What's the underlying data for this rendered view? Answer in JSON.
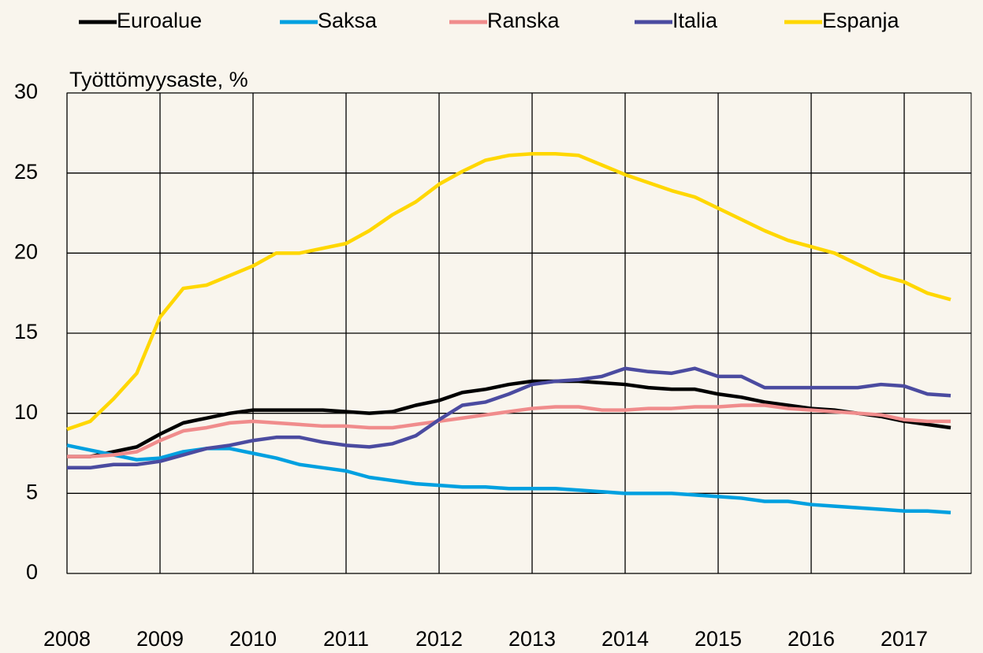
{
  "chart_data": {
    "type": "line",
    "y_label": "Työttömyysaste, %",
    "x": [
      2008,
      2008.25,
      2008.5,
      2008.75,
      2009,
      2009.25,
      2009.5,
      2009.75,
      2010,
      2010.25,
      2010.5,
      2010.75,
      2011,
      2011.25,
      2011.5,
      2011.75,
      2012,
      2012.25,
      2012.5,
      2012.75,
      2013,
      2013.25,
      2013.5,
      2013.75,
      2014,
      2014.25,
      2014.5,
      2014.75,
      2015,
      2015.25,
      2015.5,
      2015.75,
      2016,
      2016.25,
      2016.5,
      2016.75,
      2017,
      2017.25,
      2017.5
    ],
    "series": [
      {
        "name": "Euroalue",
        "color": "#000000",
        "values": [
          7.3,
          7.3,
          7.6,
          7.9,
          8.7,
          9.4,
          9.7,
          10.0,
          10.2,
          10.2,
          10.2,
          10.2,
          10.1,
          10.0,
          10.1,
          10.5,
          10.8,
          11.3,
          11.5,
          11.8,
          12.0,
          12.0,
          12.0,
          11.9,
          11.8,
          11.6,
          11.5,
          11.5,
          11.2,
          11.0,
          10.7,
          10.5,
          10.3,
          10.2,
          10.0,
          9.8,
          9.5,
          9.3,
          9.1
        ]
      },
      {
        "name": "Saksa",
        "color": "#00a0e0",
        "values": [
          8.0,
          7.7,
          7.4,
          7.1,
          7.2,
          7.6,
          7.8,
          7.8,
          7.5,
          7.2,
          6.8,
          6.6,
          6.4,
          6.0,
          5.8,
          5.6,
          5.5,
          5.4,
          5.4,
          5.3,
          5.3,
          5.3,
          5.2,
          5.1,
          5.0,
          5.0,
          5.0,
          4.9,
          4.8,
          4.7,
          4.5,
          4.5,
          4.3,
          4.2,
          4.1,
          4.0,
          3.9,
          3.9,
          3.8
        ]
      },
      {
        "name": "Ranska",
        "color": "#f08c8c",
        "values": [
          7.3,
          7.3,
          7.4,
          7.6,
          8.3,
          8.9,
          9.1,
          9.4,
          9.5,
          9.4,
          9.3,
          9.2,
          9.2,
          9.1,
          9.1,
          9.3,
          9.5,
          9.7,
          9.9,
          10.1,
          10.3,
          10.4,
          10.4,
          10.2,
          10.2,
          10.3,
          10.3,
          10.4,
          10.4,
          10.5,
          10.5,
          10.3,
          10.2,
          10.1,
          10.0,
          9.9,
          9.6,
          9.5,
          9.5
        ]
      },
      {
        "name": "Italia",
        "color": "#4b4ba0",
        "values": [
          6.6,
          6.6,
          6.8,
          6.8,
          7.0,
          7.4,
          7.8,
          8.0,
          8.3,
          8.5,
          8.5,
          8.2,
          8.0,
          7.9,
          8.1,
          8.6,
          9.6,
          10.5,
          10.7,
          11.2,
          11.8,
          12.0,
          12.1,
          12.3,
          12.8,
          12.6,
          12.5,
          12.8,
          12.3,
          12.3,
          11.6,
          11.6,
          11.6,
          11.6,
          11.6,
          11.8,
          11.7,
          11.2,
          11.1
        ]
      },
      {
        "name": "Espanja",
        "color": "#ffd700",
        "values": [
          9.0,
          9.5,
          10.9,
          12.5,
          16.0,
          17.8,
          18.0,
          18.6,
          19.2,
          20.0,
          20.0,
          20.3,
          20.6,
          21.4,
          22.4,
          23.2,
          24.3,
          25.1,
          25.8,
          26.1,
          26.2,
          26.2,
          26.1,
          25.5,
          24.9,
          24.4,
          23.9,
          23.5,
          22.8,
          22.1,
          21.4,
          20.8,
          20.4,
          20.0,
          19.3,
          18.6,
          18.2,
          17.5,
          17.1
        ]
      }
    ],
    "xlim": [
      2008,
      2017.72
    ],
    "xticks": [
      2008,
      2009,
      2010,
      2011,
      2012,
      2013,
      2014,
      2015,
      2016,
      2017
    ],
    "ylim": [
      0,
      30
    ],
    "yticks": [
      0,
      5,
      10,
      15,
      20,
      25,
      30
    ],
    "grid": true,
    "legend": "top"
  }
}
